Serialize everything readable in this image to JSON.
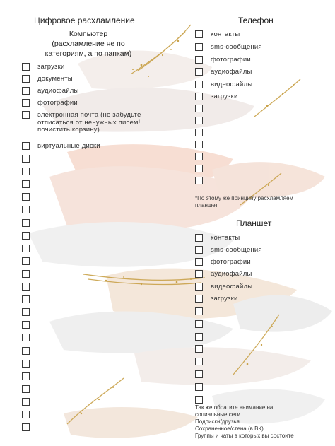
{
  "computer": {
    "header": "Цифровое расхламление",
    "subtitle_line1": "Компьютер",
    "subtitle_line2": "(расхламление не по",
    "subtitle_line3": "категориям, а по папкам)",
    "items": [
      "загрузки",
      "документы",
      "аудиофайлы",
      "фотографии",
      "электронная почта (не забудьте отписаться от ненужных писем! почистить корзину)",
      "виртуальные диски"
    ]
  },
  "phone": {
    "header": "Телефон",
    "items": [
      "контакты",
      "sms-сообщения",
      "фотографии",
      "аудиофайлы",
      "видеофайлы",
      "загрузки"
    ],
    "note": "*По этому же принципу расхламляем планшет"
  },
  "tablet": {
    "header": "Планшет",
    "items": [
      "контакты",
      "sms-сообщения",
      "фотографии",
      "аудиофайлы",
      "видеофайлы",
      "загрузки"
    ]
  },
  "footer_note": {
    "line1": "Так же обратите внимание на",
    "line2": "социальные сети",
    "line3": "Подписки/друзья",
    "line4": "Сохраненное/стена (в ВК)",
    "line5": "Группы и чаты в которых вы состоите"
  },
  "colors": {
    "peach": "#f4d8c8",
    "grey_stroke": "#e6e6e6",
    "gold": "#c9a24a"
  }
}
